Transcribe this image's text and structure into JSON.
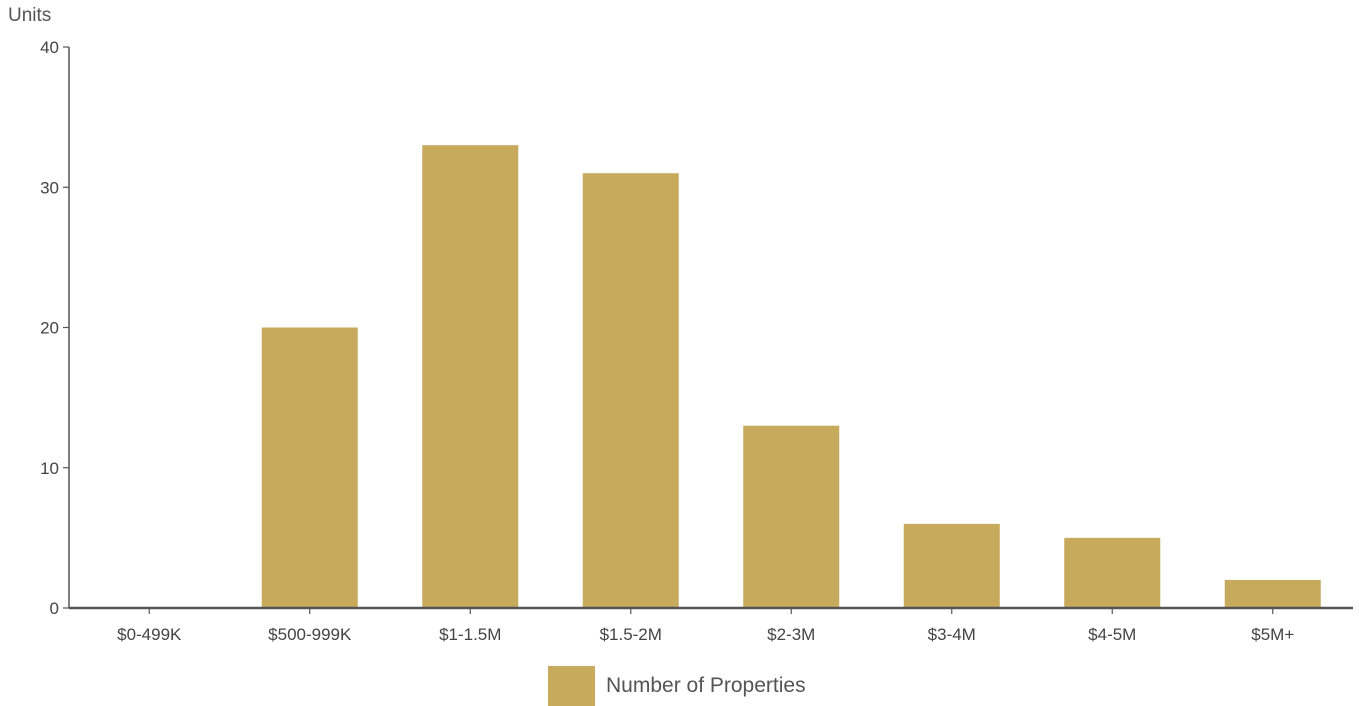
{
  "chart_data": {
    "type": "bar",
    "ylabel": "Units",
    "xlabel": "",
    "categories": [
      "$0-499K",
      "$500-999K",
      "$1-1.5M",
      "$1.5-2M",
      "$2-3M",
      "$3-4M",
      "$4-5M",
      "$5M+"
    ],
    "series": [
      {
        "name": "Number of Properties",
        "values": [
          0,
          20,
          33,
          31,
          13,
          6,
          5,
          2
        ]
      }
    ],
    "ylim": [
      0,
      40
    ],
    "yticks": [
      0,
      10,
      20,
      30,
      40
    ],
    "grid": false,
    "legend_position": "bottom-center",
    "colors": {
      "bar": "#c8aa5c",
      "axis": "#555555"
    }
  }
}
